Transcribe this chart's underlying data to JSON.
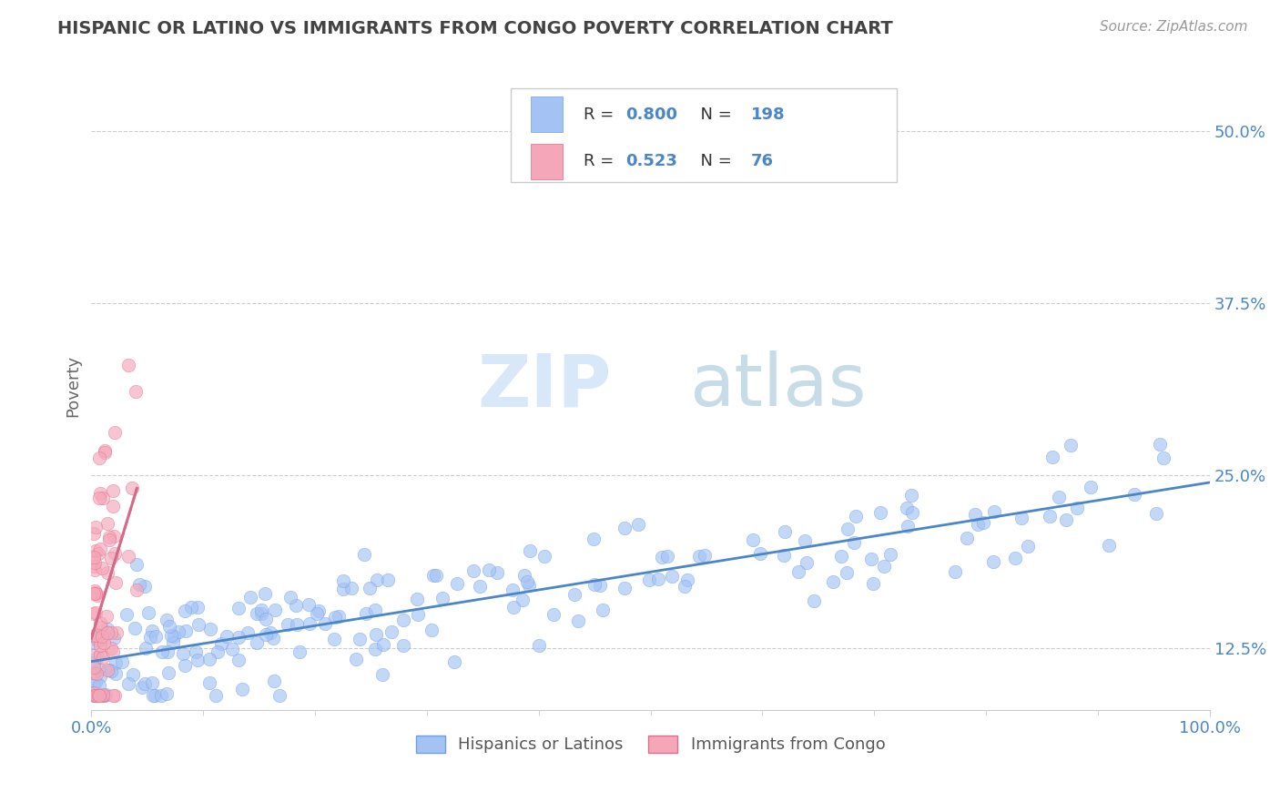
{
  "title": "HISPANIC OR LATINO VS IMMIGRANTS FROM CONGO POVERTY CORRELATION CHART",
  "source": "Source: ZipAtlas.com",
  "ylabel": "Poverty",
  "xlim": [
    0.0,
    1.0
  ],
  "ylim": [
    0.08,
    0.55
  ],
  "yticks": [
    0.125,
    0.25,
    0.375,
    0.5
  ],
  "ytick_labels": [
    "12.5%",
    "25.0%",
    "37.5%",
    "50.0%"
  ],
  "xticks": [
    0.0,
    1.0
  ],
  "xtick_labels": [
    "0.0%",
    "100.0%"
  ],
  "blue_color": "#a4c2f4",
  "pink_color": "#f4a7b9",
  "blue_edge_color": "#6d9eeb",
  "pink_edge_color": "#e06c8a",
  "blue_line_color": "#4a86c8",
  "pink_line_color": "#d46b8a",
  "blue_R": 0.8,
  "blue_N": 198,
  "pink_R": 0.523,
  "pink_N": 76,
  "legend_blue_label": "Hispanics or Latinos",
  "legend_pink_label": "Immigrants from Congo",
  "watermark_zip": "ZIP",
  "watermark_atlas": "atlas",
  "background_color": "#ffffff",
  "grid_color": "#c0c0c0",
  "title_color": "#434343",
  "source_color": "#999999",
  "blue_label_color": "#4a86c8",
  "pink_label_color": "#e06c8a",
  "legend_text_color": "#4a86c8",
  "legend_label_color": "#333333"
}
